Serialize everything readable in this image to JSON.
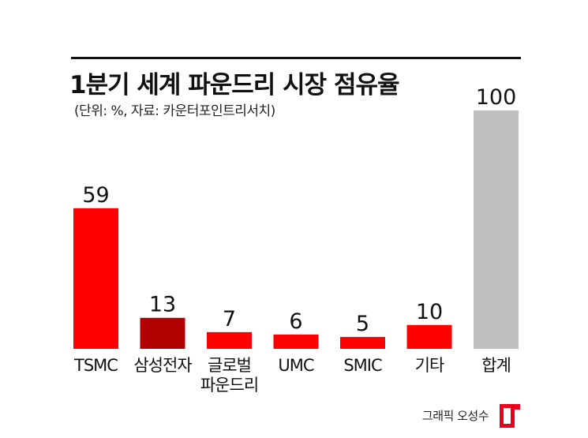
{
  "chart_data": {
    "type": "bar",
    "title": "1분기 세계 파운드리 시장 점유율",
    "subtitle": "(단위: %, 자료: 카운터포인트리서치)",
    "categories": [
      [
        "TSMC"
      ],
      [
        "삼성전자"
      ],
      [
        "글로벌",
        "파운드리"
      ],
      [
        "UMC"
      ],
      [
        "SMIC"
      ],
      [
        "기타"
      ],
      [
        "합계"
      ]
    ],
    "values": [
      59,
      13,
      7,
      6,
      5,
      10,
      100
    ],
    "bar_colors": [
      "#ff0000",
      "#b00000",
      "#ff0000",
      "#ff0000",
      "#ff0000",
      "#ff0000",
      "#bfbfbf"
    ],
    "ylim": [
      0,
      100
    ],
    "grid": false,
    "legend": "none"
  },
  "credit": "그래픽 오성수",
  "logo": {
    "icon": "red-bracket-logo-icon",
    "color": "#e8001c"
  }
}
